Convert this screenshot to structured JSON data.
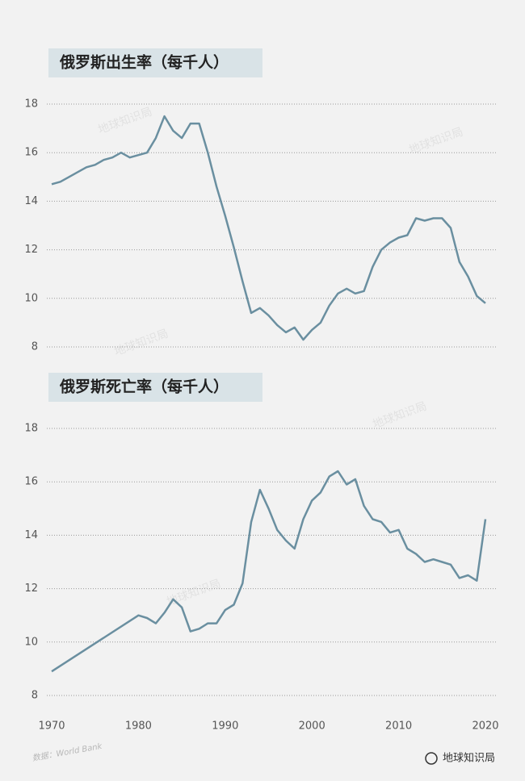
{
  "chart_data": [
    {
      "type": "line",
      "title": "俄罗斯出生率（每千人）",
      "color": "#6a8fa0",
      "grid": true,
      "x": [
        1970,
        1971,
        1972,
        1973,
        1974,
        1975,
        1976,
        1977,
        1978,
        1979,
        1980,
        1981,
        1982,
        1983,
        1984,
        1985,
        1986,
        1987,
        1988,
        1989,
        1990,
        1991,
        1992,
        1993,
        1994,
        1995,
        1996,
        1997,
        1998,
        1999,
        2000,
        2001,
        2002,
        2003,
        2004,
        2005,
        2006,
        2007,
        2008,
        2009,
        2010,
        2011,
        2012,
        2013,
        2014,
        2015,
        2016,
        2017,
        2018,
        2019,
        2020
      ],
      "values": [
        14.7,
        14.8,
        15.0,
        15.2,
        15.4,
        15.5,
        15.7,
        15.8,
        16.0,
        15.8,
        15.9,
        16.0,
        16.6,
        17.5,
        16.9,
        16.6,
        17.2,
        17.2,
        16.0,
        14.6,
        13.4,
        12.1,
        10.7,
        9.4,
        9.6,
        9.3,
        8.9,
        8.6,
        8.8,
        8.3,
        8.7,
        9.0,
        9.7,
        10.2,
        10.4,
        10.2,
        10.3,
        11.3,
        12.0,
        12.3,
        12.5,
        12.6,
        13.3,
        13.2,
        13.3,
        13.3,
        12.9,
        11.5,
        10.9,
        10.1,
        9.8
      ],
      "xlim": [
        1970,
        2020
      ],
      "ylim": [
        8,
        18
      ],
      "yticks": [
        8,
        10,
        12,
        14,
        16,
        18
      ]
    },
    {
      "type": "line",
      "title": "俄罗斯死亡率（每千人）",
      "color": "#6a8fa0",
      "grid": true,
      "x": [
        1970,
        1980,
        1981,
        1982,
        1983,
        1984,
        1985,
        1986,
        1987,
        1988,
        1989,
        1990,
        1991,
        1992,
        1993,
        1994,
        1995,
        1996,
        1997,
        1998,
        1999,
        2000,
        2001,
        2002,
        2003,
        2004,
        2005,
        2006,
        2007,
        2008,
        2009,
        2010,
        2011,
        2012,
        2013,
        2014,
        2015,
        2016,
        2017,
        2018,
        2019,
        2020
      ],
      "values": [
        8.9,
        11.0,
        10.9,
        10.7,
        11.1,
        11.6,
        11.3,
        10.4,
        10.5,
        10.7,
        10.7,
        11.2,
        11.4,
        12.2,
        14.5,
        15.7,
        15.0,
        14.2,
        13.8,
        13.5,
        14.6,
        15.3,
        15.6,
        16.2,
        16.4,
        15.9,
        16.1,
        15.1,
        14.6,
        14.5,
        14.1,
        14.2,
        13.5,
        13.3,
        13.0,
        13.1,
        13.0,
        12.9,
        12.4,
        12.5,
        12.3,
        14.6
      ],
      "xlim": [
        1970,
        2020
      ],
      "ylim": [
        8,
        18
      ],
      "yticks": [
        8,
        10,
        12,
        14,
        16,
        18
      ],
      "xticks": [
        1970,
        1980,
        1990,
        2000,
        2010,
        2020
      ]
    }
  ],
  "watermarks": [
    "地球知识局",
    "地球知识局",
    "地球知识局",
    "地球知识局",
    "地球知识局"
  ],
  "source": "数据：World Bank",
  "logo": "地球知识局"
}
